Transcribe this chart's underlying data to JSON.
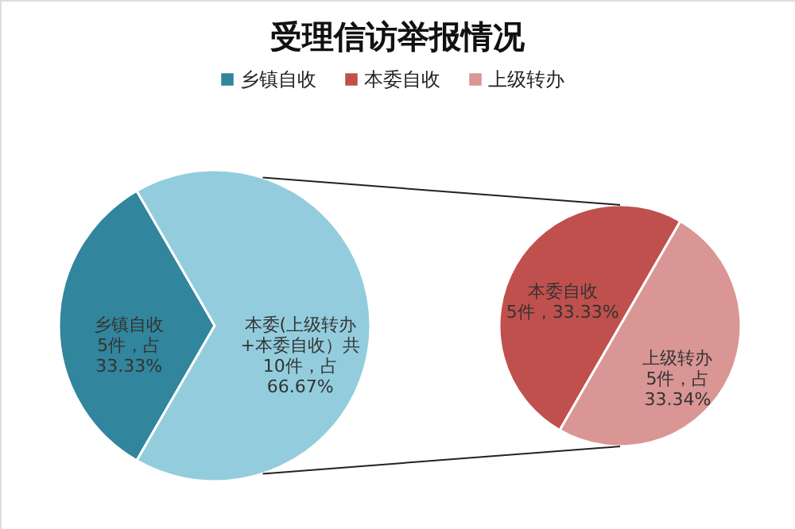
{
  "chart_data": [
    {
      "type": "pie",
      "title": "受理信访举报情况",
      "legend": "top",
      "categories": [
        "乡镇自收",
        null
      ],
      "values": [
        33.33,
        66.67
      ],
      "colors": [
        "#31859c",
        "#93cddd"
      ],
      "value_labels": [
        "乡镇自收\n5件，占\n33.33%",
        "本委(上级转办\n+本委自收）共\n10件，占\n66.67%"
      ]
    },
    {
      "type": "pie",
      "legend": "top",
      "categories": [
        "本委自收",
        "上级转办"
      ],
      "values": [
        33.33,
        33.34
      ],
      "colors": [
        "#c0504d",
        "#d99694"
      ],
      "value_labels": [
        "本委自收\n5件，33.33%",
        "上级转办\n5件，占\n33.34%"
      ]
    }
  ]
}
